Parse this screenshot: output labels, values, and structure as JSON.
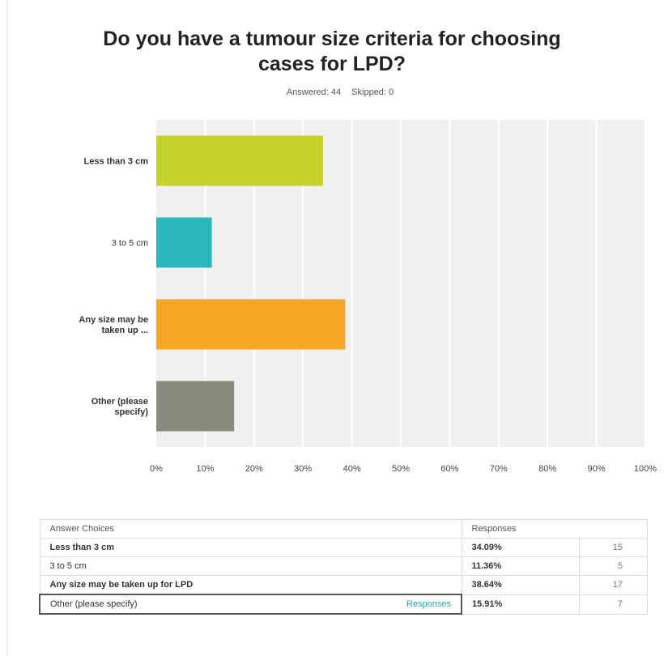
{
  "chart_data": {
    "type": "bar",
    "orientation": "horizontal",
    "title": "Do you have a tumour size criteria for choosing cases for LPD?",
    "subtitle": {
      "answered": "Answered: 44",
      "skipped": "Skipped: 0"
    },
    "categories": [
      "Less than 3 cm",
      "3 to 5 cm",
      "Any size may be taken up ...",
      "Other (please specify)"
    ],
    "values": [
      34.09,
      11.36,
      38.64,
      15.91
    ],
    "colors": [
      "#c4d22a",
      "#2ab7bd",
      "#f5a623",
      "#8a8a7c"
    ],
    "xlim": [
      0,
      100
    ],
    "x_ticks": [
      "0%",
      "10%",
      "20%",
      "30%",
      "40%",
      "50%",
      "60%",
      "70%",
      "80%",
      "90%",
      "100%"
    ],
    "grid": true,
    "legend": "none"
  },
  "table": {
    "headers": [
      "Answer Choices",
      "Responses"
    ],
    "rows": [
      {
        "choice": "Less than 3 cm",
        "percent": "34.09%",
        "count": "15",
        "bold": true
      },
      {
        "choice": "3 to 5 cm",
        "percent": "11.36%",
        "count": "5",
        "bold": false
      },
      {
        "choice": "Any size may be taken up for LPD",
        "percent": "38.64%",
        "count": "17",
        "bold": true
      },
      {
        "choice": "Other (please specify)",
        "percent": "15.91%",
        "count": "7",
        "bold": false,
        "link": "Responses"
      }
    ]
  }
}
